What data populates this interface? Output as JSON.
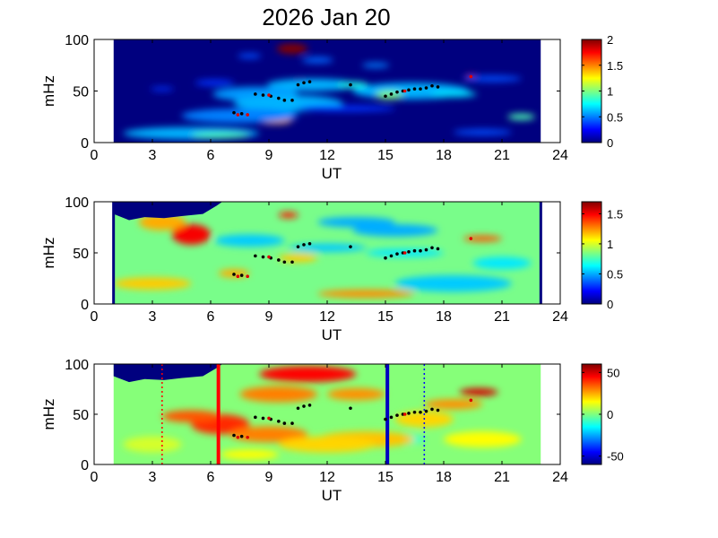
{
  "figure": {
    "title": "2026 Jan 20"
  },
  "chart_data": [
    {
      "type": "heatmap",
      "panel": "top",
      "xlabel": "UT",
      "ylabel": "mHz",
      "xlim": [
        0,
        24
      ],
      "ylim": [
        0,
        100
      ],
      "xticks": [
        0,
        3,
        6,
        9,
        12,
        15,
        18,
        21,
        24
      ],
      "yticks": [
        0,
        50,
        100
      ],
      "data_x_range": [
        1,
        23
      ],
      "colormap": "jet",
      "background": "#00007f",
      "colorbar": {
        "min": 0,
        "max": 2,
        "ticks": [
          0,
          0.5,
          1,
          1.5,
          2
        ]
      },
      "blobs": [
        {
          "x": 10.2,
          "y": 91,
          "rx": 0.8,
          "ry": 5,
          "v": 2.0
        },
        {
          "x": 10.8,
          "y": 58,
          "rx": 1.1,
          "ry": 4,
          "v": 1.9
        },
        {
          "x": 11.2,
          "y": 56,
          "rx": 2.3,
          "ry": 6,
          "v": 0.6
        },
        {
          "x": 8.8,
          "y": 46,
          "rx": 1.1,
          "ry": 4,
          "v": 1.2
        },
        {
          "x": 8.3,
          "y": 47,
          "rx": 2.2,
          "ry": 7,
          "v": 0.55
        },
        {
          "x": 10.4,
          "y": 38,
          "rx": 1.4,
          "ry": 5,
          "v": 1.9
        },
        {
          "x": 10.0,
          "y": 38,
          "rx": 2.8,
          "ry": 8,
          "v": 0.6
        },
        {
          "x": 7.5,
          "y": 28,
          "rx": 0.9,
          "ry": 4,
          "v": 1.3
        },
        {
          "x": 9.3,
          "y": 22,
          "rx": 0.9,
          "ry": 4,
          "v": 1.4
        },
        {
          "x": 7.5,
          "y": 26,
          "rx": 3.0,
          "ry": 7,
          "v": 0.5
        },
        {
          "x": 5.0,
          "y": 9,
          "rx": 3.5,
          "ry": 6,
          "v": 0.6
        },
        {
          "x": 6.5,
          "y": 7,
          "rx": 1.5,
          "ry": 3,
          "v": 0.9
        },
        {
          "x": 16.5,
          "y": 51,
          "rx": 1.6,
          "ry": 4,
          "v": 1.7
        },
        {
          "x": 16.3,
          "y": 50,
          "rx": 3.0,
          "ry": 8,
          "v": 0.6
        },
        {
          "x": 15.2,
          "y": 46,
          "rx": 0.7,
          "ry": 4,
          "v": 1.0
        },
        {
          "x": 18.5,
          "y": 47,
          "rx": 1.2,
          "ry": 3,
          "v": 0.7
        },
        {
          "x": 13.3,
          "y": 56,
          "rx": 0.8,
          "ry": 3,
          "v": 0.8
        },
        {
          "x": 19.4,
          "y": 64,
          "rx": 0.25,
          "ry": 2,
          "v": 1.8
        },
        {
          "x": 22.0,
          "y": 25,
          "rx": 0.7,
          "ry": 3,
          "v": 0.9
        },
        {
          "x": 20.0,
          "y": 10,
          "rx": 1.5,
          "ry": 3,
          "v": 0.4
        },
        {
          "x": 14.5,
          "y": 75,
          "rx": 0.7,
          "ry": 2.5,
          "v": 0.5
        },
        {
          "x": 11.5,
          "y": 80,
          "rx": 0.8,
          "ry": 3,
          "v": 0.45
        },
        {
          "x": 8.0,
          "y": 84,
          "rx": 0.6,
          "ry": 2.5,
          "v": 0.4
        },
        {
          "x": 13.0,
          "y": 33,
          "rx": 2.5,
          "ry": 3,
          "v": 0.35
        },
        {
          "x": 20.5,
          "y": 62,
          "rx": 1.5,
          "ry": 3,
          "v": 0.4
        },
        {
          "x": 6.2,
          "y": 58,
          "rx": 1.0,
          "ry": 3,
          "v": 0.35
        },
        {
          "x": 3.5,
          "y": 52,
          "rx": 0.6,
          "ry": 2,
          "v": 0.35
        }
      ]
    },
    {
      "type": "heatmap",
      "panel": "middle",
      "xlabel": "UT",
      "ylabel": "mHz",
      "xlim": [
        0,
        24
      ],
      "ylim": [
        0,
        100
      ],
      "xticks": [
        0,
        3,
        6,
        9,
        12,
        15,
        18,
        21,
        24
      ],
      "yticks": [
        0,
        50,
        100
      ],
      "data_x_range": [
        1,
        23
      ],
      "colormap": "jet",
      "background": "#79fd8a",
      "colorbar": {
        "min": 0,
        "max": 1.7,
        "ticks": [
          0,
          0.5,
          1,
          1.5
        ]
      },
      "boundary_lines": [
        1,
        23
      ],
      "blobs": [
        {
          "x": 5.0,
          "y": 68,
          "rx": 1.0,
          "ry": 10,
          "v": 1.5
        },
        {
          "x": 3.5,
          "y": 80,
          "rx": 1.2,
          "ry": 8,
          "v": 1.2
        },
        {
          "x": 10.0,
          "y": 87,
          "rx": 0.5,
          "ry": 3,
          "v": 1.45
        },
        {
          "x": 13.5,
          "y": 80,
          "rx": 2.0,
          "ry": 5,
          "v": 0.5
        },
        {
          "x": 15.5,
          "y": 72,
          "rx": 2.2,
          "ry": 6,
          "v": 0.5
        },
        {
          "x": 8.0,
          "y": 62,
          "rx": 1.8,
          "ry": 6,
          "v": 0.55
        },
        {
          "x": 12.0,
          "y": 55,
          "rx": 2.0,
          "ry": 4,
          "v": 0.55
        },
        {
          "x": 20.0,
          "y": 64,
          "rx": 1.0,
          "ry": 3,
          "v": 1.35
        },
        {
          "x": 16.0,
          "y": 50,
          "rx": 2.0,
          "ry": 4,
          "v": 0.6
        },
        {
          "x": 7.2,
          "y": 30,
          "rx": 0.8,
          "ry": 4,
          "v": 1.2
        },
        {
          "x": 18.5,
          "y": 20,
          "rx": 3.0,
          "ry": 8,
          "v": 0.55
        },
        {
          "x": 14.0,
          "y": 10,
          "rx": 2.5,
          "ry": 4,
          "v": 1.25
        },
        {
          "x": 3.0,
          "y": 20,
          "rx": 2.0,
          "ry": 6,
          "v": 1.15
        },
        {
          "x": 21.0,
          "y": 40,
          "rx": 1.5,
          "ry": 6,
          "v": 0.6
        },
        {
          "x": 10.5,
          "y": 45,
          "rx": 1.0,
          "ry": 4,
          "v": 1.15
        }
      ]
    },
    {
      "type": "heatmap",
      "panel": "bottom",
      "xlabel": "UT",
      "ylabel": "mHz",
      "xlim": [
        0,
        24
      ],
      "ylim": [
        0,
        100
      ],
      "xticks": [
        0,
        3,
        6,
        9,
        12,
        15,
        18,
        21,
        24
      ],
      "yticks": [
        0,
        50,
        100
      ],
      "data_x_range": [
        1,
        23
      ],
      "colormap": "jet",
      "background": "#86ff79",
      "colorbar": {
        "min": -60,
        "max": 60,
        "ticks": [
          -50,
          0,
          50
        ]
      },
      "vertical_markers": [
        {
          "x": 6.4,
          "color": "#ff0000",
          "style": "solid"
        },
        {
          "x": 15.1,
          "color": "#0000c0",
          "style": "solid"
        },
        {
          "x": 3.5,
          "color": "#ff0000",
          "style": "dotted"
        },
        {
          "x": 17.0,
          "color": "#0000ff",
          "style": "dotted"
        }
      ],
      "blobs": [
        {
          "x": 11.0,
          "y": 90,
          "rx": 2.5,
          "ry": 8,
          "v": 45
        },
        {
          "x": 9.5,
          "y": 70,
          "rx": 2.0,
          "ry": 8,
          "v": 30
        },
        {
          "x": 6.5,
          "y": 40,
          "rx": 1.5,
          "ry": 10,
          "v": 40
        },
        {
          "x": 5.0,
          "y": 48,
          "rx": 1.5,
          "ry": 6,
          "v": 35
        },
        {
          "x": 9.0,
          "y": 30,
          "rx": 2.0,
          "ry": 8,
          "v": 30
        },
        {
          "x": 13.5,
          "y": 70,
          "rx": 1.5,
          "ry": 6,
          "v": 28
        },
        {
          "x": 19.8,
          "y": 72,
          "rx": 1.0,
          "ry": 4,
          "v": 50
        },
        {
          "x": 18.5,
          "y": 60,
          "rx": 1.5,
          "ry": 5,
          "v": 28
        },
        {
          "x": 16.0,
          "y": 25,
          "rx": 1.0,
          "ry": 5,
          "v": -10
        },
        {
          "x": 14.0,
          "y": 25,
          "rx": 2.5,
          "ry": 8,
          "v": 22
        },
        {
          "x": 12.0,
          "y": 20,
          "rx": 2.5,
          "ry": 8,
          "v": 20
        },
        {
          "x": 20.0,
          "y": 25,
          "rx": 2.0,
          "ry": 8,
          "v": 15
        },
        {
          "x": 17.0,
          "y": 45,
          "rx": 1.5,
          "ry": 8,
          "v": 20
        },
        {
          "x": 8.0,
          "y": 10,
          "rx": 1.5,
          "ry": 5,
          "v": 15
        },
        {
          "x": 3.0,
          "y": 20,
          "rx": 1.5,
          "ry": 8,
          "v": 10
        }
      ]
    }
  ],
  "overlays": {
    "black_points": [
      [
        7.2,
        29
      ],
      [
        7.6,
        28
      ],
      [
        8.3,
        47
      ],
      [
        8.7,
        46
      ],
      [
        9.1,
        45
      ],
      [
        9.5,
        43
      ],
      [
        9.8,
        41
      ],
      [
        10.2,
        41
      ],
      [
        10.5,
        56
      ],
      [
        10.8,
        58
      ],
      [
        11.1,
        59
      ],
      [
        13.2,
        56
      ],
      [
        15.0,
        45
      ],
      [
        15.3,
        47
      ],
      [
        15.6,
        49
      ],
      [
        15.9,
        50
      ],
      [
        16.2,
        51
      ],
      [
        16.5,
        52
      ],
      [
        16.8,
        52
      ],
      [
        17.1,
        53
      ],
      [
        17.4,
        55
      ],
      [
        17.7,
        54
      ]
    ],
    "red_points": [
      [
        7.4,
        27
      ],
      [
        7.9,
        27
      ],
      [
        19.4,
        64
      ],
      [
        16.0,
        50
      ],
      [
        9.0,
        46
      ]
    ]
  }
}
